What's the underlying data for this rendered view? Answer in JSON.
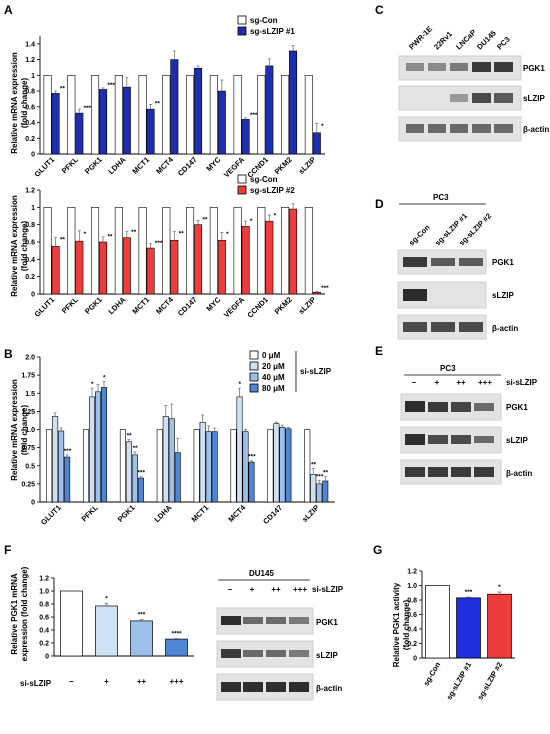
{
  "panels": {
    "A": "A",
    "B": "B",
    "C": "C",
    "D": "D",
    "E": "E",
    "F": "F",
    "G": "G"
  },
  "colors": {
    "a1_bar": "#1d2faf",
    "a2_bar": "#ee3b3b",
    "b_series": [
      "#ffffff",
      "#cfe0f3",
      "#9cc0ea",
      "#4f86d3"
    ],
    "f_series": [
      "#ffffff",
      "#cfe0f3",
      "#9cc0ea",
      "#4f86d3"
    ],
    "g_series": [
      "#ffffff",
      "#1d2fdf",
      "#ee3b3b"
    ],
    "error": "#777777"
  },
  "panel_A1": {
    "ylabel_line1": "Relative mRNA expression",
    "ylabel_line2": "(fold change)",
    "legend": [
      "sg-Con",
      "sg-sLZIP #1"
    ]
  },
  "panel_A2": {
    "ylabel_line1": "Relative mRNA expression",
    "ylabel_line2": "(fold change)",
    "legend": [
      "sg-Con",
      "sg-sLZIP #2"
    ]
  },
  "panel_B": {
    "ylabel_line1": "Relative mRNA expression",
    "ylabel_line2": "(fold change)",
    "legend": [
      "0 μM",
      "20 μM",
      "40 μM",
      "80 μM"
    ],
    "legend_group": "si-sLZIP"
  },
  "panel_C": {
    "lanes": [
      "PWR-1E",
      "22Rv1",
      "LNCaP",
      "DU145",
      "PC3"
    ],
    "blots": [
      "PGK1",
      "sLZIP",
      "β-actin"
    ]
  },
  "panel_D": {
    "title": "PC3",
    "lanes": [
      "sg-Con",
      "sg-sLZIP #1",
      "sg-sLZIP #2"
    ],
    "blots": [
      "PGK1",
      "sLZIP",
      "β-actin"
    ]
  },
  "panel_E": {
    "title": "PC3",
    "row_label": "si-sLZIP",
    "lanes": [
      "–",
      "+",
      "++",
      "+++"
    ],
    "blots": [
      "PGK1",
      "sLZIP",
      "β-actin"
    ]
  },
  "panel_F_blot": {
    "title": "DU145",
    "row_label": "si-sLZIP",
    "lanes": [
      "–",
      "+",
      "++",
      "+++"
    ],
    "blots": [
      "PGK1",
      "sLZIP",
      "β-actin"
    ]
  },
  "panel_F_chart": {
    "ylabel_line1": "Relative PGK1 mRNA",
    "ylabel_line2": "expression (fold change)",
    "row_label": "si-sLZIP"
  },
  "panel_G": {
    "ylabel_line1": "Relative PGK1 activity",
    "ylabel_line2": "(fold change)"
  },
  "chart_data": [
    {
      "id": "A1",
      "type": "bar",
      "categories": [
        "GLUT1",
        "PFKL",
        "PGK1",
        "LDHA",
        "MCT1",
        "MCT4",
        "CD147",
        "MYC",
        "VEGFA",
        "CCND1",
        "PKM2",
        "sLZIP"
      ],
      "series": [
        {
          "name": "sg-Con",
          "values": [
            1,
            1,
            1,
            1,
            1,
            1,
            1,
            1,
            1,
            1,
            1,
            1
          ],
          "errors": [
            0,
            0,
            0,
            0,
            0,
            0,
            0,
            0,
            0,
            0,
            0,
            0
          ]
        },
        {
          "name": "sg-sLZIP #1",
          "values": [
            0.77,
            0.52,
            0.82,
            0.85,
            0.57,
            1.2,
            1.09,
            0.8,
            0.44,
            1.12,
            1.31,
            0.27
          ],
          "errors": [
            0.03,
            0.05,
            0.02,
            0.12,
            0.06,
            0.11,
            0.03,
            0.14,
            0.02,
            0.09,
            0.07,
            0.12
          ]
        }
      ],
      "annotations": [
        "**",
        "***",
        "***",
        "",
        "**",
        "",
        "",
        "",
        "***",
        "",
        "",
        "*"
      ],
      "ylim": [
        0,
        1.5
      ],
      "yticks": [
        "0",
        "0.2",
        "0.4",
        "0.6",
        "0.8",
        "1",
        "1.2",
        "1.4"
      ],
      "ytick_values": [
        0,
        0.2,
        0.4,
        0.6,
        0.8,
        1,
        1.2,
        1.4
      ]
    },
    {
      "id": "A2",
      "type": "bar",
      "categories": [
        "GLUT1",
        "PFKL",
        "PGK1",
        "LDHA",
        "MCT1",
        "MCT4",
        "CD147",
        "MYC",
        "VEGFA",
        "CCND1",
        "PKM2",
        "sLZIP"
      ],
      "series": [
        {
          "name": "sg-Con",
          "values": [
            1,
            1,
            1,
            1,
            1,
            1,
            1,
            1,
            1,
            1,
            1,
            1
          ],
          "errors": [
            0,
            0,
            0,
            0,
            0,
            0,
            0,
            0,
            0,
            0,
            0,
            0
          ]
        },
        {
          "name": "sg-sLZIP #2",
          "values": [
            0.55,
            0.61,
            0.6,
            0.65,
            0.53,
            0.62,
            0.8,
            0.62,
            0.78,
            0.84,
            0.98,
            0.02
          ],
          "errors": [
            0.1,
            0.12,
            0.06,
            0.07,
            0.05,
            0.1,
            0.05,
            0.09,
            0.06,
            0.07,
            0.06,
            0.01
          ]
        }
      ],
      "annotations": [
        "**",
        "*",
        "**",
        "**",
        "***",
        "**",
        "**",
        "*",
        "*",
        "*",
        "",
        "***"
      ],
      "ylim": [
        0,
        1.2
      ],
      "yticks": [
        "0",
        "0.2",
        "0.4",
        "0.6",
        "0.8",
        "1",
        "1.2"
      ],
      "ytick_values": [
        0,
        0.2,
        0.4,
        0.6,
        0.8,
        1,
        1.2
      ]
    },
    {
      "id": "B",
      "type": "bar",
      "categories": [
        "GLUT1",
        "PFKL",
        "PGK1",
        "LDHA",
        "MCT1",
        "MCT4",
        "CD147",
        "sLZIP"
      ],
      "series": [
        {
          "name": "0 μM",
          "values": [
            1,
            1,
            1,
            1,
            1,
            1,
            1,
            1
          ],
          "errors": [
            0,
            0,
            0,
            0,
            0,
            0,
            0,
            0
          ]
        },
        {
          "name": "20 μM",
          "values": [
            1.18,
            1.45,
            0.83,
            1.18,
            1.1,
            1.45,
            1.08,
            0.38
          ],
          "errors": [
            0.05,
            0.12,
            0.03,
            0.15,
            0.1,
            0.12,
            0.02,
            0.08
          ]
        },
        {
          "name": "40 μM",
          "values": [
            0.98,
            1.52,
            0.65,
            1.15,
            0.97,
            0.97,
            1.03,
            0.25
          ],
          "errors": [
            0.04,
            0.1,
            0.04,
            0.2,
            0.08,
            0.03,
            0.03,
            0.05
          ]
        },
        {
          "name": "80 μM",
          "values": [
            0.62,
            1.58,
            0.33,
            0.68,
            0.97,
            0.55,
            1.01,
            0.29
          ],
          "errors": [
            0.03,
            0.08,
            0.02,
            0.2,
            0.05,
            0.02,
            0.02,
            0.06
          ]
        }
      ],
      "annotations": [
        [
          "",
          "",
          "",
          "***"
        ],
        [
          "",
          "*",
          "",
          "*"
        ],
        [
          "",
          "**",
          "**",
          "***"
        ],
        [
          "",
          "",
          "",
          ""
        ],
        [
          "",
          "",
          "",
          ""
        ],
        [
          "",
          "*",
          "",
          "***"
        ],
        [
          "",
          "",
          "",
          ""
        ],
        [
          "",
          "**",
          "***",
          "**"
        ]
      ],
      "ylim": [
        0,
        2.0
      ],
      "yticks": [
        "0",
        "0.25",
        "0.5",
        "0.75",
        "1.0",
        "1.25",
        "1.5",
        "1.75",
        "2.0"
      ],
      "ytick_values": [
        0,
        0.25,
        0.5,
        0.75,
        1.0,
        1.25,
        1.5,
        1.75,
        2.0
      ]
    },
    {
      "id": "F",
      "type": "bar",
      "categories": [
        "–",
        "+",
        "++",
        "+++"
      ],
      "values": [
        1.0,
        0.77,
        0.54,
        0.26
      ],
      "errors": [
        0,
        0.04,
        0.02,
        0.01
      ],
      "annotations": [
        "",
        "*",
        "***",
        "****"
      ],
      "ylim": [
        0,
        1.2
      ],
      "yticks": [
        "0",
        "0.2",
        "0.4",
        "0.6",
        "0.8",
        "1.0",
        "1.2"
      ],
      "ytick_values": [
        0,
        0.2,
        0.4,
        0.6,
        0.8,
        1.0,
        1.2
      ]
    },
    {
      "id": "G",
      "type": "bar",
      "categories": [
        "sg-Con",
        "sg-sLZIP #1",
        "sg-sLZIP #2"
      ],
      "values": [
        1.0,
        0.83,
        0.88
      ],
      "errors": [
        0,
        0.01,
        0.03
      ],
      "annotations": [
        "",
        "***",
        "*"
      ],
      "ylim": [
        0,
        1.2
      ],
      "yticks": [
        "0",
        "0.2",
        "0.4",
        "0.6",
        "0.8",
        "1.0",
        "1.2"
      ],
      "ytick_values": [
        0,
        0.2,
        0.4,
        0.6,
        0.8,
        1.0,
        1.2
      ]
    }
  ]
}
